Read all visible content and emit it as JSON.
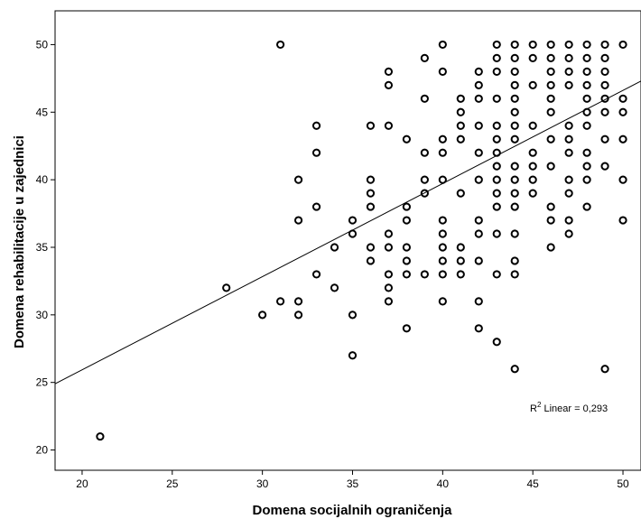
{
  "chart_data": {
    "type": "scatter",
    "title": "",
    "xlabel": "Domena socijalnih ograničenja",
    "ylabel": "Domena rehabilitacije u zajednici",
    "xlim": [
      18.5,
      51
    ],
    "ylim": [
      18.5,
      52.5
    ],
    "xticks": [
      20,
      25,
      30,
      35,
      40,
      45,
      50
    ],
    "yticks": [
      20,
      25,
      30,
      35,
      40,
      45,
      50
    ],
    "grid": false,
    "annotation": {
      "r2_prefix": "R",
      "r2_sup": "2",
      "r2_text": " Linear = 0,293"
    },
    "fit_line": {
      "x": [
        18.5,
        51
      ],
      "y": [
        24.9,
        47.3
      ]
    },
    "points": [
      [
        21,
        21
      ],
      [
        28,
        32
      ],
      [
        30,
        30
      ],
      [
        31,
        31
      ],
      [
        31,
        50
      ],
      [
        32,
        40
      ],
      [
        32,
        37
      ],
      [
        32,
        31
      ],
      [
        32,
        30
      ],
      [
        33,
        44
      ],
      [
        33,
        42
      ],
      [
        33,
        38
      ],
      [
        33,
        33
      ],
      [
        34,
        35
      ],
      [
        34,
        32
      ],
      [
        35,
        37
      ],
      [
        35,
        36
      ],
      [
        35,
        30
      ],
      [
        35,
        27
      ],
      [
        36,
        44
      ],
      [
        36,
        40
      ],
      [
        36,
        39
      ],
      [
        36,
        38
      ],
      [
        36,
        35
      ],
      [
        36,
        34
      ],
      [
        37,
        48
      ],
      [
        37,
        47
      ],
      [
        37,
        44
      ],
      [
        37,
        36
      ],
      [
        37,
        35
      ],
      [
        37,
        33
      ],
      [
        37,
        32
      ],
      [
        37,
        31
      ],
      [
        38,
        43
      ],
      [
        38,
        38
      ],
      [
        38,
        37
      ],
      [
        38,
        35
      ],
      [
        38,
        34
      ],
      [
        38,
        33
      ],
      [
        38,
        29
      ],
      [
        39,
        49
      ],
      [
        39,
        46
      ],
      [
        39,
        42
      ],
      [
        39,
        40
      ],
      [
        39,
        39
      ],
      [
        39,
        33
      ],
      [
        40,
        50
      ],
      [
        40,
        48
      ],
      [
        40,
        43
      ],
      [
        40,
        42
      ],
      [
        40,
        40
      ],
      [
        40,
        37
      ],
      [
        40,
        36
      ],
      [
        40,
        35
      ],
      [
        40,
        34
      ],
      [
        40,
        33
      ],
      [
        40,
        31
      ],
      [
        41,
        46
      ],
      [
        41,
        45
      ],
      [
        41,
        44
      ],
      [
        41,
        43
      ],
      [
        41,
        39
      ],
      [
        41,
        35
      ],
      [
        41,
        34
      ],
      [
        41,
        33
      ],
      [
        42,
        48
      ],
      [
        42,
        47
      ],
      [
        42,
        46
      ],
      [
        42,
        44
      ],
      [
        42,
        42
      ],
      [
        42,
        40
      ],
      [
        42,
        37
      ],
      [
        42,
        36
      ],
      [
        42,
        34
      ],
      [
        42,
        31
      ],
      [
        42,
        29
      ],
      [
        43,
        50
      ],
      [
        43,
        49
      ],
      [
        43,
        48
      ],
      [
        43,
        46
      ],
      [
        43,
        44
      ],
      [
        43,
        43
      ],
      [
        43,
        42
      ],
      [
        43,
        41
      ],
      [
        43,
        40
      ],
      [
        43,
        39
      ],
      [
        43,
        38
      ],
      [
        43,
        36
      ],
      [
        43,
        33
      ],
      [
        43,
        28
      ],
      [
        44,
        50
      ],
      [
        44,
        49
      ],
      [
        44,
        48
      ],
      [
        44,
        47
      ],
      [
        44,
        46
      ],
      [
        44,
        45
      ],
      [
        44,
        44
      ],
      [
        44,
        43
      ],
      [
        44,
        41
      ],
      [
        44,
        40
      ],
      [
        44,
        39
      ],
      [
        44,
        38
      ],
      [
        44,
        36
      ],
      [
        44,
        34
      ],
      [
        44,
        33
      ],
      [
        44,
        26
      ],
      [
        45,
        50
      ],
      [
        45,
        49
      ],
      [
        45,
        47
      ],
      [
        45,
        44
      ],
      [
        45,
        42
      ],
      [
        45,
        41
      ],
      [
        45,
        40
      ],
      [
        45,
        39
      ],
      [
        46,
        50
      ],
      [
        46,
        49
      ],
      [
        46,
        48
      ],
      [
        46,
        47
      ],
      [
        46,
        46
      ],
      [
        46,
        45
      ],
      [
        46,
        43
      ],
      [
        46,
        41
      ],
      [
        46,
        38
      ],
      [
        46,
        37
      ],
      [
        46,
        35
      ],
      [
        47,
        50
      ],
      [
        47,
        49
      ],
      [
        47,
        48
      ],
      [
        47,
        47
      ],
      [
        47,
        44
      ],
      [
        47,
        43
      ],
      [
        47,
        42
      ],
      [
        47,
        40
      ],
      [
        47,
        39
      ],
      [
        47,
        37
      ],
      [
        47,
        36
      ],
      [
        48,
        50
      ],
      [
        48,
        49
      ],
      [
        48,
        48
      ],
      [
        48,
        47
      ],
      [
        48,
        46
      ],
      [
        48,
        45
      ],
      [
        48,
        44
      ],
      [
        48,
        42
      ],
      [
        48,
        41
      ],
      [
        48,
        40
      ],
      [
        48,
        38
      ],
      [
        49,
        50
      ],
      [
        49,
        49
      ],
      [
        49,
        48
      ],
      [
        49,
        47
      ],
      [
        49,
        46
      ],
      [
        49,
        45
      ],
      [
        49,
        43
      ],
      [
        49,
        41
      ],
      [
        49,
        26
      ],
      [
        50,
        50
      ],
      [
        50,
        46
      ],
      [
        50,
        45
      ],
      [
        50,
        43
      ],
      [
        50,
        40
      ],
      [
        50,
        37
      ]
    ]
  }
}
